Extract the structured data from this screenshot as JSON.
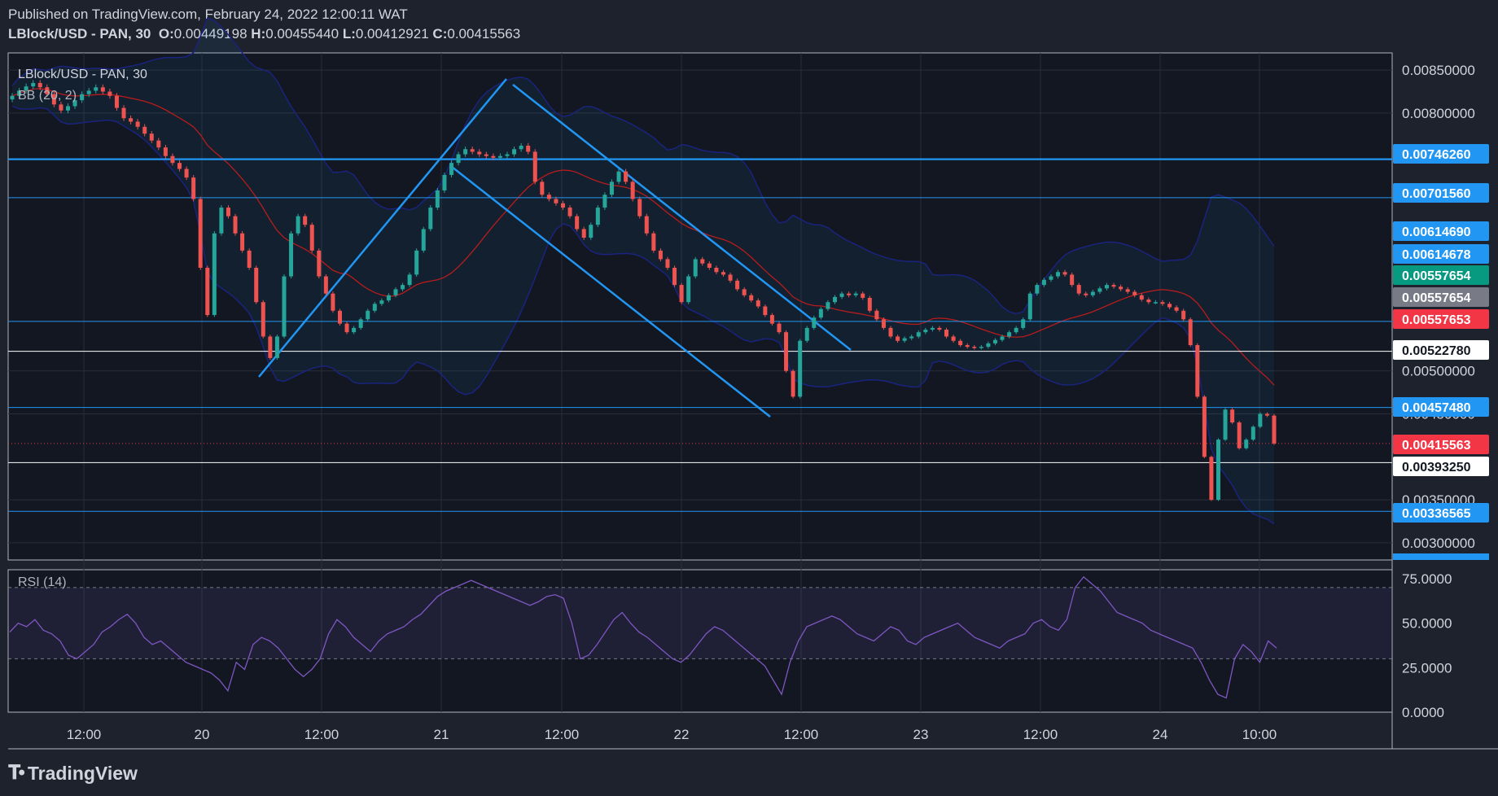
{
  "header": {
    "published": "Published on TradingView.com, February 24, 2022 12:00:11 WAT",
    "symbol": "LBlock/USD - PAN, 30",
    "open_label": "O:",
    "open": "0.00449198",
    "high_label": "H:",
    "high": "0.00455440",
    "low_label": "L:",
    "low": "0.00412921",
    "close_label": "C:",
    "close": "0.00415563"
  },
  "legend": {
    "symbol": "LBlock/USD - PAN, 30",
    "bb": "BB (20, 2)",
    "rsi": "RSI (14)"
  },
  "footer": {
    "brand": "TradingView"
  },
  "colors": {
    "background": "#1e222d",
    "up": "#26a69a",
    "down": "#ef5350",
    "trendline": "#2196f3",
    "bb_band": "#1a237e",
    "bb_basis": "#b71c1c",
    "rsi": "#7e57c2"
  },
  "chart_data": [
    {
      "type": "candlestick",
      "title": "LBlock/USD - PAN, 30",
      "x_ticks": [
        "12:00",
        "20",
        "12:00",
        "21",
        "12:00",
        "22",
        "12:00",
        "23",
        "12:00",
        "24",
        "10:00"
      ],
      "ylim": [
        0.0028,
        0.0087
      ],
      "y_ticks": [
        "0.00850000",
        "0.00800000",
        "0.00500000",
        "0.00450000",
        "0.00350000",
        "0.00300000"
      ],
      "horizontal_levels": [
        0.0074626,
        0.0070156,
        0.0055765,
        0.0052278,
        0.0045748,
        0.0039325,
        0.00336565
      ],
      "price_tags": [
        {
          "value": 0.0074626,
          "label": "0.00746260",
          "color": "#2196f3"
        },
        {
          "value": 0.0070156,
          "label": "0.00701560",
          "color": "#2196f3"
        },
        {
          "value": 0.0061469,
          "label": "0.00614690",
          "color": "#2196f3"
        },
        {
          "value": 0.00614678,
          "label": "0.00614678",
          "color": "#2196f3"
        },
        {
          "value": 0.00557654,
          "label": "0.00557654",
          "color": "#089981"
        },
        {
          "value": 0.00557654,
          "label": "0.00557654",
          "color": "#787b86"
        },
        {
          "value": 0.00557653,
          "label": "0.00557653",
          "color": "#f23645"
        },
        {
          "value": 0.0052278,
          "label": "0.00522780",
          "color": "#ffffff"
        },
        {
          "value": 0.0045748,
          "label": "0.00457480",
          "color": "#2196f3"
        },
        {
          "value": 0.00415563,
          "label": "0.00415563",
          "color": "#f23645"
        },
        {
          "value": 0.0039325,
          "label": "0.00393250",
          "color": "#ffffff"
        },
        {
          "value": 0.00336565,
          "label": "0.00336565",
          "color": "#2196f3"
        }
      ],
      "trendlines": [
        {
          "from": [
            "19 20:30",
            0.005
          ],
          "to": [
            "21 13:00",
            0.0083
          ]
        },
        {
          "from": [
            "21 01:00",
            0.00737
          ],
          "to": [
            "22 16:00",
            0.00458
          ]
        },
        {
          "from": [
            "21 14:00",
            0.00825
          ],
          "to": [
            "22 07:00",
            0.00528
          ]
        }
      ],
      "close_series": [
        0.0082,
        0.00826,
        0.00831,
        0.00835,
        0.0083,
        0.00822,
        0.0081,
        0.00803,
        0.00808,
        0.00815,
        0.00822,
        0.00826,
        0.0083,
        0.00825,
        0.0082,
        0.00806,
        0.00794,
        0.0079,
        0.00784,
        0.00776,
        0.00768,
        0.0076,
        0.0075,
        0.00742,
        0.00735,
        0.00725,
        0.007,
        0.0062,
        0.00565,
        0.0066,
        0.0069,
        0.0068,
        0.0066,
        0.0064,
        0.0062,
        0.0058,
        0.0054,
        0.00515,
        0.0054,
        0.0061,
        0.0066,
        0.0068,
        0.0067,
        0.0064,
        0.0061,
        0.0059,
        0.0057,
        0.00555,
        0.00545,
        0.0055,
        0.0056,
        0.0057,
        0.00578,
        0.00582,
        0.00588,
        0.00595,
        0.006,
        0.00612,
        0.0064,
        0.00665,
        0.0069,
        0.0071,
        0.00728,
        0.00742,
        0.00752,
        0.00758,
        0.00755,
        0.00752,
        0.0075,
        0.00748,
        0.0075,
        0.00752,
        0.00758,
        0.00762,
        0.00755,
        0.0072,
        0.00705,
        0.007,
        0.00695,
        0.0069,
        0.0068,
        0.00665,
        0.00655,
        0.0067,
        0.0069,
        0.00705,
        0.0072,
        0.00732,
        0.0072,
        0.007,
        0.0068,
        0.0066,
        0.0064,
        0.0063,
        0.0062,
        0.006,
        0.0058,
        0.0061,
        0.0063,
        0.00625,
        0.0062,
        0.00615,
        0.00612,
        0.00605,
        0.00595,
        0.00588,
        0.00582,
        0.00575,
        0.00565,
        0.00555,
        0.00545,
        0.005,
        0.0047,
        0.00535,
        0.0055,
        0.00562,
        0.00572,
        0.0058,
        0.00586,
        0.0059,
        0.00588,
        0.0059,
        0.00585,
        0.0057,
        0.0056,
        0.0055,
        0.0054,
        0.00535,
        0.00538,
        0.0054,
        0.00545,
        0.00548,
        0.0055,
        0.00548,
        0.0054,
        0.00535,
        0.0053,
        0.00528,
        0.00527,
        0.00528,
        0.00532,
        0.00536,
        0.0054,
        0.00545,
        0.0055,
        0.0056,
        0.0059,
        0.006,
        0.00606,
        0.0061,
        0.00615,
        0.00612,
        0.006,
        0.0059,
        0.00588,
        0.00592,
        0.00596,
        0.006,
        0.00598,
        0.00595,
        0.00592,
        0.00588,
        0.00583,
        0.0058,
        0.0058,
        0.00578,
        0.00574,
        0.0057,
        0.0056,
        0.0053,
        0.0047,
        0.004,
        0.0035,
        0.0042,
        0.00455,
        0.0044,
        0.0041,
        0.0042,
        0.00435,
        0.0045,
        0.00448,
        0.00415563
      ]
    },
    {
      "type": "line",
      "title": "RSI (14)",
      "ylim": [
        0,
        80
      ],
      "y_ticks": [
        "75.0000",
        "50.0000",
        "25.0000",
        "0.0000"
      ],
      "bands": [
        30,
        70
      ],
      "values": [
        45,
        50,
        48,
        52,
        46,
        44,
        40,
        32,
        30,
        34,
        38,
        45,
        48,
        52,
        55,
        50,
        42,
        38,
        40,
        36,
        32,
        28,
        26,
        24,
        22,
        18,
        12,
        28,
        24,
        38,
        42,
        40,
        36,
        30,
        24,
        20,
        24,
        30,
        44,
        52,
        48,
        42,
        38,
        34,
        40,
        44,
        46,
        48,
        52,
        55,
        60,
        65,
        68,
        70,
        72,
        74,
        72,
        70,
        68,
        66,
        64,
        62,
        60,
        62,
        65,
        66,
        64,
        50,
        30,
        32,
        38,
        45,
        52,
        56,
        50,
        45,
        42,
        38,
        34,
        30,
        28,
        32,
        38,
        44,
        48,
        46,
        42,
        38,
        34,
        30,
        26,
        18,
        10,
        28,
        40,
        48,
        50,
        52,
        54,
        52,
        48,
        44,
        42,
        40,
        44,
        48,
        46,
        40,
        38,
        42,
        44,
        46,
        48,
        50,
        46,
        42,
        40,
        38,
        36,
        40,
        42,
        44,
        50,
        52,
        48,
        46,
        52,
        70,
        76,
        72,
        68,
        62,
        56,
        54,
        52,
        50,
        46,
        44,
        42,
        40,
        38,
        36,
        28,
        18,
        10,
        8,
        30,
        38,
        34,
        28,
        40,
        36
      ]
    }
  ]
}
